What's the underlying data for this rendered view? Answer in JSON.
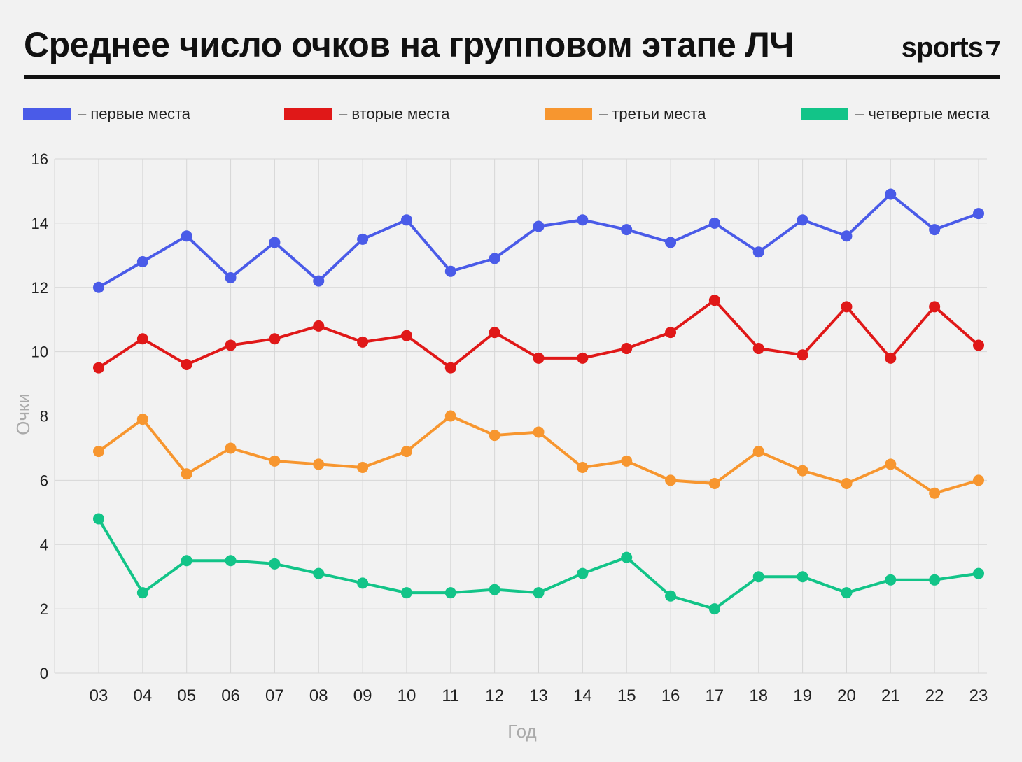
{
  "header": {
    "title": "Среднее число очков на групповом этапе ЛЧ",
    "brand": "sports"
  },
  "legend": [
    {
      "label": "– первые места",
      "color": "#4a5be8"
    },
    {
      "label": "– вторые места",
      "color": "#e01818"
    },
    {
      "label": "– третьи места",
      "color": "#f7962f"
    },
    {
      "label": "– четвертые места",
      "color": "#12c488"
    }
  ],
  "chart_data": {
    "type": "line",
    "title": "Среднее число очков на групповом этапе ЛЧ",
    "xlabel": "Год",
    "ylabel": "Очки",
    "ylim": [
      0,
      16
    ],
    "yticks": [
      "0",
      "2",
      "4",
      "6",
      "8",
      "10",
      "12",
      "14",
      "16"
    ],
    "grid": true,
    "legend_position": "top",
    "categories": [
      "03",
      "04",
      "05",
      "06",
      "07",
      "08",
      "09",
      "10",
      "11",
      "12",
      "13",
      "14",
      "15",
      "16",
      "17",
      "18",
      "19",
      "20",
      "21",
      "22",
      "23"
    ],
    "series": [
      {
        "name": "первые места",
        "color": "#4a5be8",
        "values": [
          12.0,
          12.8,
          13.6,
          12.3,
          13.4,
          12.2,
          13.5,
          14.1,
          12.5,
          12.9,
          13.9,
          14.1,
          13.8,
          13.4,
          14.0,
          13.1,
          14.1,
          13.6,
          14.9,
          13.8,
          14.3
        ]
      },
      {
        "name": "вторые места",
        "color": "#e01818",
        "values": [
          9.5,
          10.4,
          9.6,
          10.2,
          10.4,
          10.8,
          10.3,
          10.5,
          9.5,
          10.6,
          9.8,
          9.8,
          10.1,
          10.6,
          11.6,
          10.1,
          9.9,
          11.4,
          9.8,
          11.4,
          10.2
        ]
      },
      {
        "name": "третьи места",
        "color": "#f7962f",
        "values": [
          6.9,
          7.9,
          6.2,
          7.0,
          6.6,
          6.5,
          6.4,
          6.9,
          8.0,
          7.4,
          7.5,
          6.4,
          6.6,
          6.0,
          5.9,
          6.9,
          6.3,
          5.9,
          6.5,
          5.6,
          6.0
        ]
      },
      {
        "name": "четвертые места",
        "color": "#12c488",
        "values": [
          4.8,
          2.5,
          3.5,
          3.5,
          3.4,
          3.1,
          2.8,
          2.5,
          2.5,
          2.6,
          2.5,
          3.1,
          3.6,
          2.4,
          2.0,
          3.0,
          3.0,
          2.5,
          2.9,
          2.9,
          3.1
        ]
      }
    ]
  }
}
